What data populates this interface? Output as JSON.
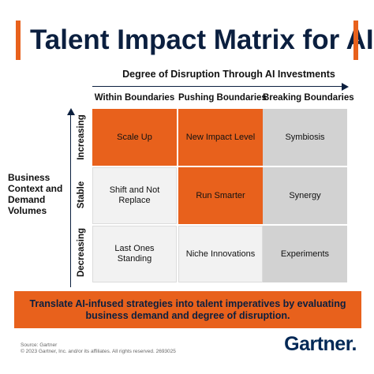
{
  "title": "Talent Impact Matrix for AI",
  "x_axis": {
    "title": "Degree of Disruption Through AI Investments",
    "columns": [
      "Within Boundaries",
      "Pushing Boundaries",
      "Breaking Boundaries"
    ]
  },
  "y_axis": {
    "title": "Business Context and Demand Volumes",
    "rows": [
      "Increasing",
      "Stable",
      "Decreasing"
    ]
  },
  "matrix": {
    "rows": [
      {
        "cells": [
          {
            "label": "Scale Up",
            "fill": "orange"
          },
          {
            "label": "New Impact Level",
            "fill": "orange"
          },
          {
            "label": "Symbiosis",
            "fill": "gray"
          }
        ]
      },
      {
        "cells": [
          {
            "label": "Shift and Not Replace",
            "fill": "light"
          },
          {
            "label": "Run Smarter",
            "fill": "orange"
          },
          {
            "label": "Synergy",
            "fill": "gray"
          }
        ]
      },
      {
        "cells": [
          {
            "label": "Last Ones Standing",
            "fill": "light"
          },
          {
            "label": "Niche Innovations",
            "fill": "light"
          },
          {
            "label": "Experiments",
            "fill": "gray"
          }
        ]
      }
    ]
  },
  "banner": "Translate AI-infused strategies into talent imperatives by evaluating business demand and degree of disruption.",
  "footer": {
    "source": "Source: Gartner",
    "copyright": "© 2023 Gartner, Inc. and/or its affiliates. All rights reserved. 2693025",
    "logo": "Gartner."
  },
  "colors": {
    "accent": "#e8611c",
    "navy": "#0b1f3f",
    "light": "#f2f2f2",
    "gray": "#d2d2d2"
  }
}
